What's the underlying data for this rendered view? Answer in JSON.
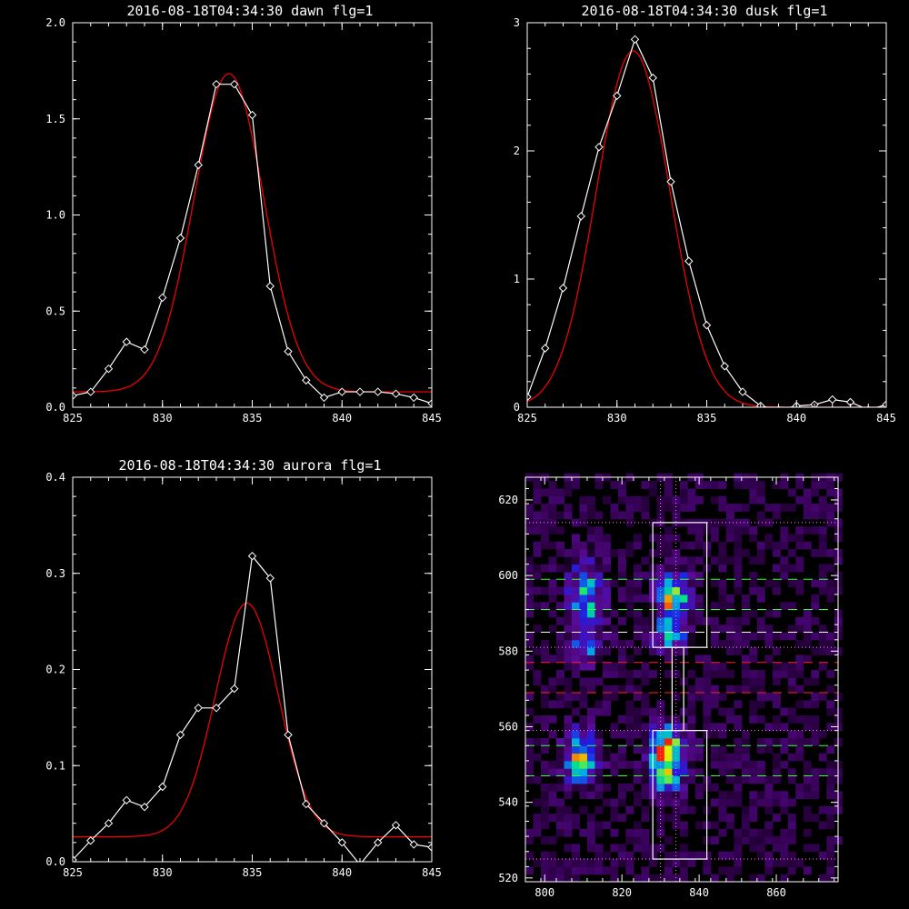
{
  "chart_data": [
    {
      "type": "line",
      "title": "2016-08-18T04:34:30 dawn flg=1",
      "xlim": [
        825,
        845
      ],
      "ylim": [
        0,
        2.0
      ],
      "xticks": [
        "825",
        "830",
        "835",
        "840",
        "845"
      ],
      "yticks": [
        "0.0",
        "0.5",
        "1.0",
        "1.5",
        "2.0"
      ],
      "series": [
        {
          "color": "#ffffff",
          "marker": "diamond",
          "x": [
            825,
            826,
            827,
            828,
            829,
            830,
            831,
            832,
            833,
            834,
            835,
            836,
            837,
            838,
            839,
            840,
            841,
            842,
            843,
            844,
            845
          ],
          "y": [
            0.06,
            0.08,
            0.2,
            0.34,
            0.3,
            0.57,
            0.88,
            1.26,
            1.68,
            1.68,
            1.52,
            0.63,
            0.29,
            0.14,
            0.05,
            0.08,
            0.08,
            0.08,
            0.07,
            0.05,
            0.02
          ]
        },
        {
          "color": "#ff0000",
          "fit": {
            "amp": 1.655,
            "center": 833.7,
            "sigma": 1.95,
            "offset": 0.08
          }
        }
      ]
    },
    {
      "type": "line",
      "title": "2016-08-18T04:34:30 dusk flg=1",
      "xlim": [
        825,
        845
      ],
      "ylim": [
        0,
        3
      ],
      "xticks": [
        "825",
        "830",
        "835",
        "840",
        "845"
      ],
      "yticks": [
        "0",
        "1",
        "2",
        "3"
      ],
      "series": [
        {
          "color": "#ffffff",
          "marker": "diamond",
          "x": [
            825,
            826,
            827,
            828,
            829,
            830,
            831,
            832,
            833,
            834,
            835,
            836,
            837,
            838,
            839,
            840,
            841,
            842,
            843,
            844,
            845
          ],
          "y": [
            0.08,
            0.46,
            0.93,
            1.49,
            2.03,
            2.43,
            2.87,
            2.57,
            1.76,
            1.14,
            0.64,
            0.32,
            0.12,
            0.01,
            -0.02,
            0.01,
            0.02,
            0.06,
            0.04,
            -0.02,
            0.02
          ]
        },
        {
          "color": "#ff0000",
          "fit": {
            "amp": 2.78,
            "center": 830.9,
            "sigma": 2.05,
            "offset": 0.0
          }
        }
      ]
    },
    {
      "type": "line",
      "title": "2016-08-18T04:34:30 aurora flg=1",
      "xlim": [
        825,
        845
      ],
      "ylim": [
        0,
        0.4
      ],
      "xticks": [
        "825",
        "830",
        "835",
        "840",
        "845"
      ],
      "yticks": [
        "0.0",
        "0.1",
        "0.2",
        "0.3",
        "0.4"
      ],
      "series": [
        {
          "color": "#ffffff",
          "marker": "diamond",
          "x": [
            825,
            826,
            827,
            828,
            829,
            830,
            831,
            832,
            833,
            834,
            835,
            836,
            837,
            838,
            839,
            840,
            841,
            842,
            843,
            844,
            845
          ],
          "y": [
            0.002,
            0.022,
            0.04,
            0.064,
            0.057,
            0.078,
            0.132,
            0.16,
            0.16,
            0.18,
            0.318,
            0.295,
            0.132,
            0.06,
            0.04,
            0.02,
            -0.003,
            0.02,
            0.038,
            0.018,
            0.015
          ]
        },
        {
          "color": "#ff0000",
          "fit": {
            "amp": 0.243,
            "center": 834.7,
            "sigma": 1.75,
            "offset": 0.026
          }
        }
      ]
    },
    {
      "type": "heatmap",
      "xlim": [
        795,
        876
      ],
      "ylim": [
        519,
        626
      ],
      "xticks": [
        "800",
        "820",
        "840",
        "860"
      ],
      "yticks": [
        "520",
        "540",
        "560",
        "580",
        "600",
        "620"
      ],
      "blobs": [
        {
          "x": 810.5,
          "y": 593,
          "sx": 3.0,
          "sy": 7.5,
          "amp": 0.55
        },
        {
          "x": 810.5,
          "y": 581,
          "sx": 2.5,
          "sy": 3.0,
          "amp": 0.3
        },
        {
          "x": 809.5,
          "y": 552,
          "sx": 3.0,
          "sy": 4.5,
          "amp": 0.72
        },
        {
          "x": 833.5,
          "y": 594,
          "sx": 2.8,
          "sy": 4.5,
          "amp": 0.78
        },
        {
          "x": 832.5,
          "y": 584,
          "sx": 2.8,
          "sy": 3.0,
          "amp": 0.5
        },
        {
          "x": 831.5,
          "y": 553,
          "sx": 3.0,
          "sy": 4.5,
          "amp": 1.0
        },
        {
          "x": 831.5,
          "y": 545,
          "sx": 2.5,
          "sy": 2.5,
          "amp": 0.35
        }
      ],
      "overlays": {
        "boxes": [
          {
            "x": [
              828,
              842
            ],
            "y": [
              581,
              614
            ]
          },
          {
            "x": [
              828,
              842
            ],
            "y": [
              525,
              559
            ]
          }
        ],
        "connector": {
          "x": [
            833,
            836
          ],
          "y": [
            559,
            581
          ]
        },
        "dotted_vertical_x": [
          830,
          834
        ],
        "dotted_horizontal_y": [
          614,
          581,
          559,
          525
        ],
        "dotted_color": "#ff88ff",
        "green_dashed_y": [
          599,
          591,
          555,
          547
        ],
        "white_dashed_y": [
          585
        ],
        "red_dashed_y": [
          577,
          569
        ],
        "colors": {
          "green": "#33ff33",
          "white": "#ffffff",
          "red": "#ff2222",
          "box": "#ffffff"
        }
      }
    }
  ]
}
